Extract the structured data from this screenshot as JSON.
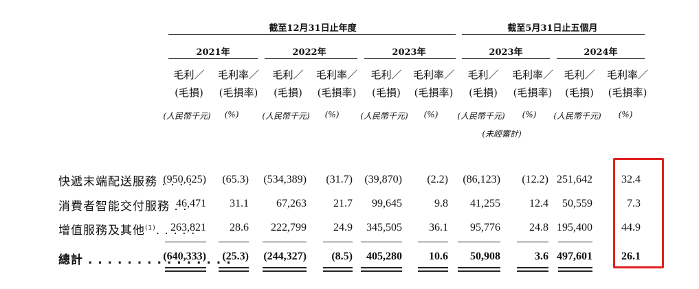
{
  "headers": {
    "period_fy": "截至12月31日止年度",
    "period_five_months": "截至5月31日止五個月",
    "years": [
      "2021年",
      "2022年",
      "2023年",
      "2023年",
      "2024年"
    ]
  },
  "subheaders": {
    "gross_profit_line1": "毛利／",
    "gross_profit_line2": "(毛損)",
    "margin_line1": "毛利率／",
    "margin_line2": "(毛損率)",
    "unit_rmb": "(人民幣千元)",
    "unit_pct": "(%)",
    "unaudited": "(未經審計)"
  },
  "rows": [
    {
      "label": "快遞末端配送服務 . . . .",
      "cells": [
        "(950,625)",
        "(65.3)",
        "(534,389)",
        "(31.7)",
        "(39,870)",
        "(2.2)",
        "(86,123)",
        "(12.2)",
        "251,642",
        "32.4"
      ]
    },
    {
      "label": "消費者智能交付服務 . .",
      "cells": [
        "46,471",
        "31.1",
        "67,263",
        "21.7",
        "99,645",
        "9.8",
        "41,255",
        "12.4",
        "50,559",
        "7.3"
      ]
    },
    {
      "label": "增值服務及其他",
      "label_sup": "(1)",
      "label_dots": ". . . . .",
      "cells": [
        "263,821",
        "28.6",
        "222,799",
        "24.9",
        "345,505",
        "36.1",
        "95,776",
        "24.8",
        "195,400",
        "44.9"
      ]
    },
    {
      "label": "總計 . . . . . . . . . . . . . . .",
      "cells": [
        "(640,333)",
        "(25.3)",
        "(244,327)",
        "(8.5)",
        "405,280",
        "10.6",
        "50,908",
        "3.6",
        "497,601",
        "26.1"
      ]
    }
  ],
  "colors": {
    "highlight_border": "#e02020",
    "text": "#111111",
    "rule": "#222222"
  }
}
